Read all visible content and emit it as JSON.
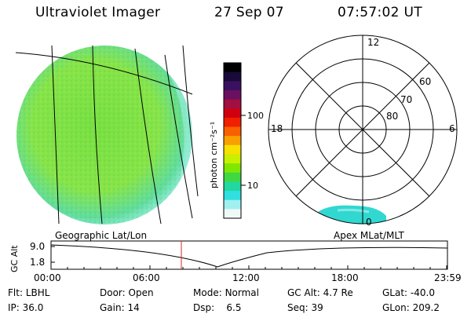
{
  "header": {
    "instrument": "Ultraviolet Imager",
    "date": "27 Sep 07",
    "time": "07:57:02 UT"
  },
  "colorbar": {
    "unit_label": "photon cm⁻²s⁻¹",
    "scale": "log",
    "tick_labels": [
      "100",
      "10"
    ],
    "colors": [
      "#000000",
      "#1a0a3a",
      "#3a1060",
      "#6a1060",
      "#a01040",
      "#d00010",
      "#f02000",
      "#f86000",
      "#f8a000",
      "#f8e000",
      "#c8f000",
      "#80e800",
      "#40d840",
      "#20d8a0",
      "#30e0e0",
      "#a0f0f0",
      "#f0f8f8"
    ]
  },
  "polar": {
    "labels": {
      "top": "12",
      "left": "18",
      "right": "6",
      "bottom": "0"
    },
    "lat_labels": [
      "80",
      "70",
      "60"
    ],
    "fill_color": "#30d8d0"
  },
  "image": {
    "fill_color": "#80e040",
    "edge_color": "#a0f0f0"
  },
  "plot": {
    "left_title": "Geographic Lat/Lon",
    "right_title": "Apex MLat/MLT",
    "y_axis_label": "GC Alt",
    "y_ticks": [
      "9.0",
      "1.8"
    ],
    "x_ticks": [
      "00:00",
      "06:00",
      "12:00",
      "18:00",
      "23:59"
    ],
    "marker_time": "07:57"
  },
  "status": {
    "row1": [
      {
        "label": "Flt:",
        "value": "LBHL"
      },
      {
        "label": "Door:",
        "value": "Open"
      },
      {
        "label": "Mode:",
        "value": "Normal"
      },
      {
        "label": "GC Alt:",
        "value": "4.7 Re"
      },
      {
        "label": "GLat:",
        "value": "-40.0"
      }
    ],
    "row2": [
      {
        "label": "IP:",
        "value": "36.0"
      },
      {
        "label": "Gain:",
        "value": "14"
      },
      {
        "label": "Dsp:",
        "value": "6.5"
      },
      {
        "label": "Seq:",
        "value": "39"
      },
      {
        "label": "GLon:",
        "value": "209.2"
      }
    ]
  }
}
